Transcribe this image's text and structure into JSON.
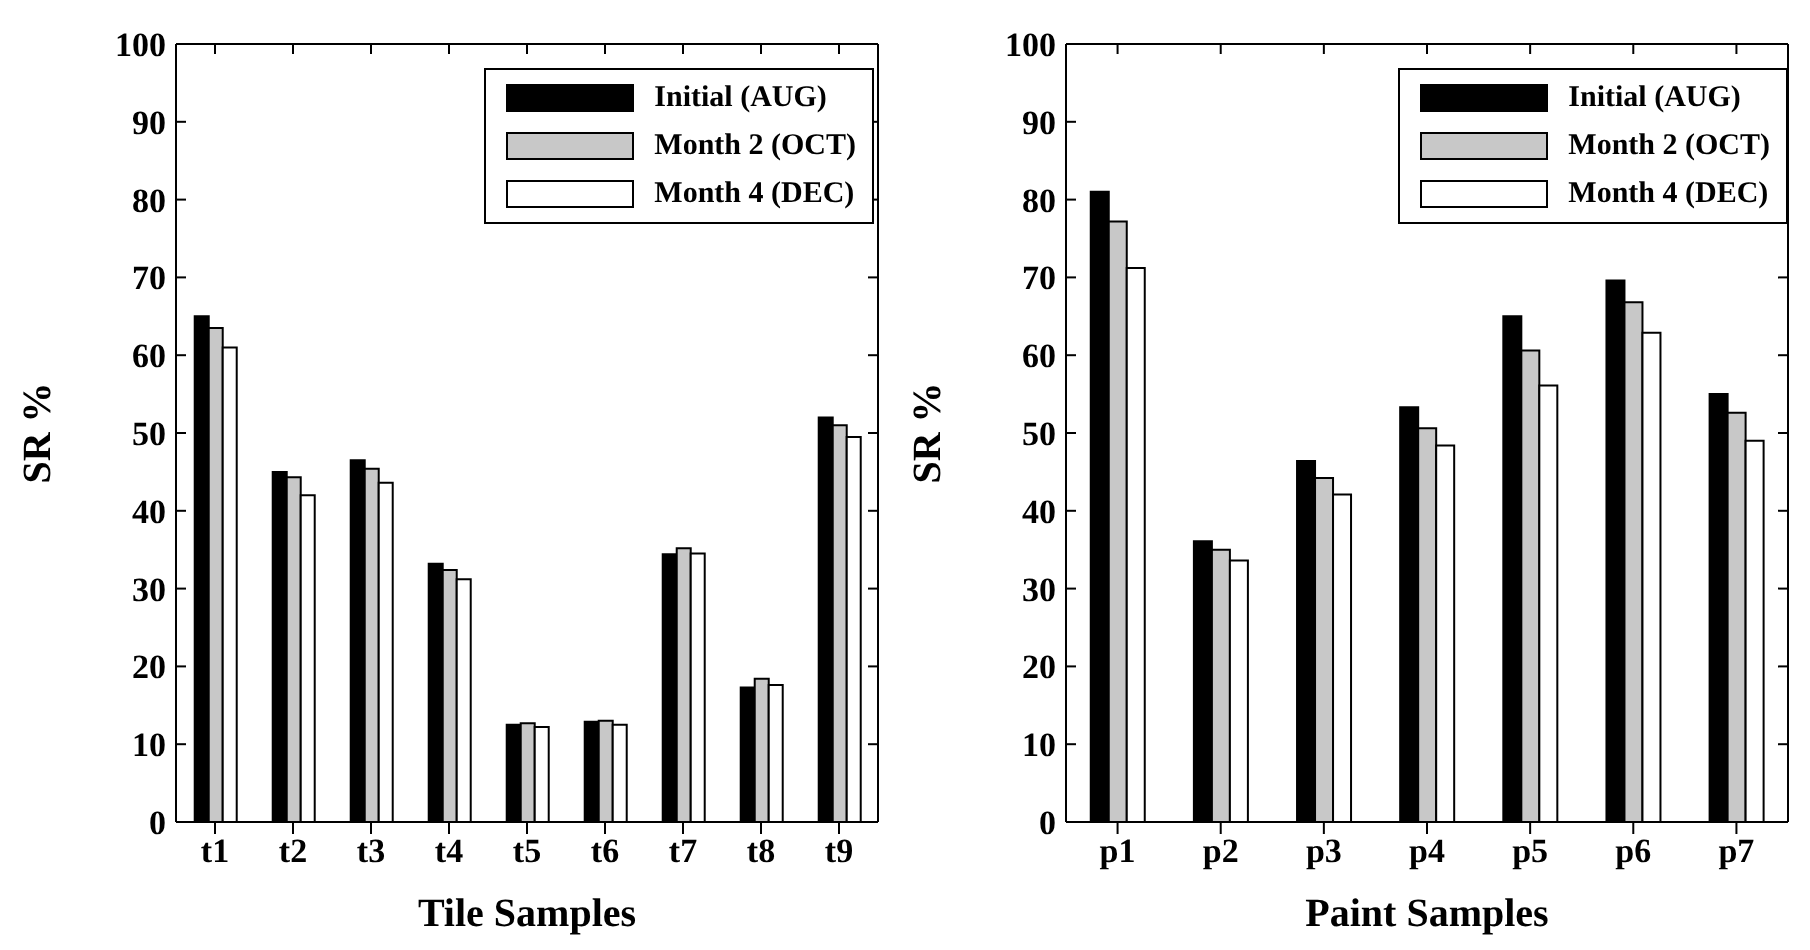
{
  "chart_data": [
    {
      "type": "bar",
      "xlabel": "Tile Samples",
      "ylabel": "SR %",
      "categories": [
        "t1",
        "t2",
        "t3",
        "t4",
        "t5",
        "t6",
        "t7",
        "t8",
        "t9"
      ],
      "series": [
        {
          "name": "Initial (AUG)",
          "color": "#000000",
          "values": [
            65,
            45,
            46.5,
            33.2,
            12.5,
            12.9,
            34.4,
            17.3,
            52
          ]
        },
        {
          "name": "Month 2 (OCT)",
          "color": "#c8c8c8",
          "values": [
            63.5,
            44.3,
            45.4,
            32.4,
            12.7,
            13,
            35.2,
            18.4,
            51
          ]
        },
        {
          "name": "Month 4 (DEC)",
          "color": "#ffffff",
          "values": [
            61,
            42,
            43.6,
            31.2,
            12.2,
            12.5,
            34.5,
            17.6,
            49.5
          ]
        }
      ],
      "ylim": [
        0,
        100
      ],
      "yticks": [
        0,
        10,
        20,
        30,
        40,
        50,
        60,
        70,
        80,
        90,
        100
      ],
      "grid": false,
      "legend": "top right"
    },
    {
      "type": "bar",
      "xlabel": "Paint Samples",
      "ylabel": "SR %",
      "categories": [
        "p1",
        "p2",
        "p3",
        "p4",
        "p5",
        "p6",
        "p7"
      ],
      "series": [
        {
          "name": "Initial (AUG)",
          "color": "#000000",
          "values": [
            81,
            36.1,
            46.4,
            53.3,
            65,
            69.6,
            55
          ]
        },
        {
          "name": "Month 2 (OCT)",
          "color": "#c8c8c8",
          "values": [
            77.2,
            35,
            44.2,
            50.6,
            60.6,
            66.8,
            52.6
          ]
        },
        {
          "name": "Month 4 (DEC)",
          "color": "#ffffff",
          "values": [
            71.2,
            33.6,
            42.1,
            48.4,
            56.1,
            62.9,
            49
          ]
        }
      ],
      "ylim": [
        0,
        100
      ],
      "yticks": [
        0,
        10,
        20,
        30,
        40,
        50,
        60,
        70,
        80,
        90,
        100
      ],
      "grid": false,
      "legend": "top right"
    }
  ]
}
